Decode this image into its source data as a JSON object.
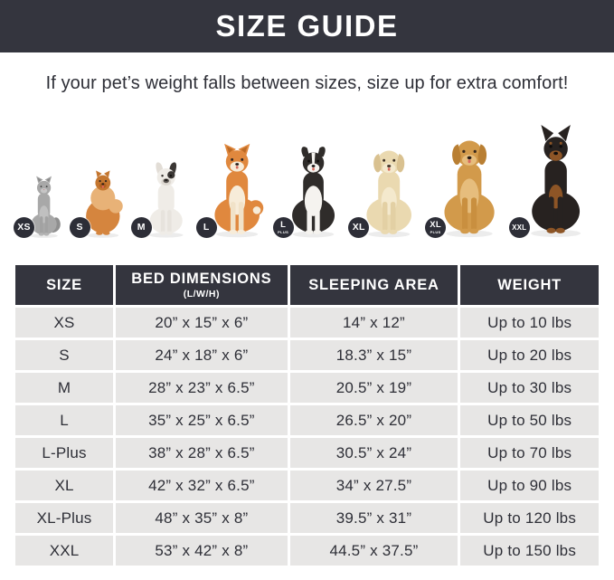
{
  "header": {
    "title": "SIZE GUIDE",
    "subtitle": "If your pet’s weight falls between sizes, size up for extra comfort!"
  },
  "colors": {
    "banner_bg": "#34353e",
    "banner_text": "#ffffff",
    "cell_bg": "#e7e6e5",
    "text": "#2e2f37",
    "badge_bg": "#2d2e37"
  },
  "animals": [
    {
      "size": "XS",
      "species": "cat",
      "badge_main": "XS",
      "badge_sub": "",
      "display_height": 70
    },
    {
      "size": "S",
      "species": "pomeranian",
      "badge_main": "S",
      "badge_sub": "",
      "display_height": 80
    },
    {
      "size": "M",
      "species": "french-bulldog",
      "badge_main": "M",
      "badge_sub": "",
      "display_height": 86
    },
    {
      "size": "L",
      "species": "shiba-inu",
      "badge_main": "L",
      "badge_sub": "",
      "display_height": 106
    },
    {
      "size": "L-Plus",
      "species": "border-collie",
      "badge_main": "L",
      "badge_sub": "PLUS",
      "display_height": 104
    },
    {
      "size": "XL",
      "species": "labrador",
      "badge_main": "XL",
      "badge_sub": "",
      "display_height": 106
    },
    {
      "size": "XL-Plus",
      "species": "golden-retriever",
      "badge_main": "XL",
      "badge_sub": "PLUS",
      "display_height": 118
    },
    {
      "size": "XXL",
      "species": "doberman",
      "badge_main": "XXL",
      "badge_sub": "",
      "display_height": 126
    }
  ],
  "table": {
    "columns": [
      {
        "label": "SIZE",
        "sub": ""
      },
      {
        "label": "BED DIMENSIONS",
        "sub": "(L/W/H)"
      },
      {
        "label": "SLEEPING AREA",
        "sub": ""
      },
      {
        "label": "WEIGHT",
        "sub": ""
      }
    ],
    "rows": [
      [
        "XS",
        "20” x 15” x 6”",
        "14” x 12”",
        "Up to 10 lbs"
      ],
      [
        "S",
        "24” x 18” x 6”",
        "18.3” x 15”",
        "Up to 20 lbs"
      ],
      [
        "M",
        "28” x 23” x 6.5”",
        "20.5” x 19”",
        "Up to 30 lbs"
      ],
      [
        "L",
        "35” x 25” x 6.5”",
        "26.5” x 20”",
        "Up to 50 lbs"
      ],
      [
        "L-Plus",
        "38” x 28” x 6.5”",
        "30.5” x 24”",
        "Up to 70 lbs"
      ],
      [
        "XL",
        "42” x 32” x 6.5”",
        "34” x 27.5”",
        "Up to 90 lbs"
      ],
      [
        "XL-Plus",
        "48” x 35” x 8”",
        "39.5” x 31”",
        "Up to 120 lbs"
      ],
      [
        "XXL",
        "53” x 42” x 8”",
        "44.5” x 37.5”",
        "Up to 150 lbs"
      ]
    ]
  }
}
